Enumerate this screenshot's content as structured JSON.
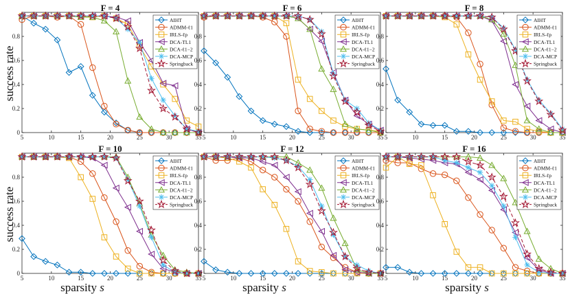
{
  "figure": {
    "ylabel": "success rate",
    "xlabel_text": "sparsity",
    "xlabel_var": "s"
  },
  "legend": [
    {
      "name": "AIHT",
      "color": "#0072BD",
      "marker": "diamond",
      "dash": ""
    },
    {
      "name": "ADMM-ℓ1",
      "color": "#D95319",
      "marker": "circle",
      "dash": ""
    },
    {
      "name": "IRLS-ℓp",
      "color": "#EDB120",
      "marker": "square",
      "dash": ""
    },
    {
      "name": "DCA-TL1",
      "color": "#7E2F8E",
      "marker": "triangle-left",
      "dash": ""
    },
    {
      "name": "DCA-ℓ1−2",
      "color": "#77AC30",
      "marker": "triangle-up",
      "dash": ""
    },
    {
      "name": "DCA-MCP",
      "color": "#4DBEEE",
      "marker": "asterisk",
      "dash": ""
    },
    {
      "name": "Springback",
      "color": "#A2142F",
      "marker": "pentagram",
      "dash": "5,3"
    }
  ],
  "chart_data": [
    {
      "type": "line",
      "title": "F = 4",
      "xlim": [
        5,
        35
      ],
      "ylim": [
        0,
        1
      ],
      "xticks": [
        5,
        10,
        15,
        20,
        25,
        30,
        35
      ],
      "yticks": [
        0,
        0.2,
        0.4,
        0.6,
        0.8
      ],
      "x": [
        5,
        7,
        9,
        11,
        13,
        15,
        17,
        19,
        21,
        23,
        25,
        27,
        29,
        31,
        33,
        35
      ],
      "series": [
        {
          "name": "AIHT",
          "values": [
            0.97,
            0.91,
            0.86,
            0.77,
            0.5,
            0.55,
            0.31,
            0.17,
            0.08,
            0.02,
            0.0,
            0.0,
            0.0,
            0.0,
            0.0,
            0.0
          ]
        },
        {
          "name": "ADMM-ℓ1",
          "values": [
            0.94,
            0.97,
            0.97,
            0.96,
            0.97,
            0.9,
            0.54,
            0.22,
            0.07,
            0.02,
            0.0,
            0.0,
            0.0,
            0.0,
            0.0,
            0.0
          ]
        },
        {
          "name": "IRLS-ℓp",
          "values": [
            0.97,
            0.97,
            0.97,
            0.97,
            0.97,
            0.97,
            0.96,
            0.97,
            0.95,
            0.9,
            0.72,
            0.55,
            0.4,
            0.28,
            0.1,
            0.05
          ]
        },
        {
          "name": "DCA-TL1",
          "values": [
            0.97,
            0.97,
            0.97,
            0.97,
            0.97,
            0.97,
            0.97,
            0.97,
            0.96,
            0.93,
            0.75,
            0.6,
            0.41,
            0.39,
            0.03,
            0.0
          ]
        },
        {
          "name": "DCA-ℓ1−2",
          "values": [
            0.97,
            0.97,
            0.97,
            0.97,
            0.97,
            0.96,
            0.96,
            0.93,
            0.84,
            0.43,
            0.13,
            0.03,
            0.0,
            0.0,
            0.0,
            0.0
          ]
        },
        {
          "name": "DCA-MCP",
          "values": [
            0.97,
            0.97,
            0.97,
            0.97,
            0.97,
            0.97,
            0.97,
            0.97,
            0.95,
            0.86,
            0.75,
            0.45,
            0.27,
            0.14,
            0.03,
            0.01
          ]
        },
        {
          "name": "Springback",
          "values": [
            0.97,
            0.97,
            0.97,
            0.97,
            0.97,
            0.97,
            0.97,
            0.97,
            0.95,
            0.88,
            0.7,
            0.35,
            0.2,
            0.13,
            0.03,
            0.0
          ]
        }
      ]
    },
    {
      "type": "line",
      "title": "F = 6",
      "xlim": [
        5,
        35
      ],
      "ylim": [
        0,
        1
      ],
      "xticks": [
        5,
        10,
        15,
        20,
        25,
        30,
        35
      ],
      "yticks": [
        0,
        0.2,
        0.4,
        0.6,
        0.8
      ],
      "x": [
        5,
        7,
        9,
        11,
        13,
        15,
        17,
        19,
        21,
        23,
        25,
        27,
        29,
        31,
        33,
        35
      ],
      "series": [
        {
          "name": "AIHT",
          "values": [
            0.68,
            0.58,
            0.46,
            0.3,
            0.18,
            0.1,
            0.07,
            0.05,
            0.01,
            0.0,
            0.0,
            0.0,
            0.0,
            0.0,
            0.0,
            0.0
          ]
        },
        {
          "name": "ADMM-ℓ1",
          "values": [
            0.96,
            0.97,
            0.97,
            0.97,
            0.97,
            0.96,
            0.92,
            0.8,
            0.18,
            0.03,
            0.01,
            0.0,
            0.0,
            0.0,
            0.0,
            0.0
          ]
        },
        {
          "name": "IRLS-ℓp",
          "values": [
            0.97,
            0.97,
            0.97,
            0.97,
            0.97,
            0.97,
            0.97,
            0.91,
            0.44,
            0.28,
            0.18,
            0.1,
            0.05,
            0.03,
            0.02,
            0.01
          ]
        },
        {
          "name": "DCA-TL1",
          "values": [
            0.97,
            0.97,
            0.97,
            0.97,
            0.97,
            0.97,
            0.97,
            0.97,
            0.95,
            0.86,
            0.76,
            0.5,
            0.27,
            0.14,
            0.07,
            0.02
          ]
        },
        {
          "name": "DCA-ℓ1−2",
          "values": [
            0.97,
            0.97,
            0.97,
            0.97,
            0.97,
            0.97,
            0.97,
            0.97,
            0.95,
            0.86,
            0.53,
            0.36,
            0.07,
            0.03,
            0.02,
            0.0
          ]
        },
        {
          "name": "DCA-MCP",
          "values": [
            0.97,
            0.97,
            0.97,
            0.97,
            0.97,
            0.97,
            0.97,
            0.97,
            0.97,
            0.94,
            0.84,
            0.49,
            0.27,
            0.2,
            0.08,
            0.02
          ]
        },
        {
          "name": "Springback",
          "values": [
            0.97,
            0.97,
            0.97,
            0.97,
            0.97,
            0.97,
            0.97,
            0.97,
            0.97,
            0.94,
            0.82,
            0.47,
            0.26,
            0.17,
            0.06,
            0.01
          ]
        }
      ]
    },
    {
      "type": "line",
      "title": "F = 8",
      "xlim": [
        5,
        35
      ],
      "ylim": [
        0,
        1
      ],
      "xticks": [
        5,
        10,
        15,
        20,
        25,
        30,
        35
      ],
      "yticks": [
        0,
        0.2,
        0.4,
        0.6,
        0.8
      ],
      "x": [
        5,
        7,
        9,
        11,
        13,
        15,
        17,
        19,
        21,
        23,
        25,
        27,
        29,
        31,
        33,
        35
      ],
      "series": [
        {
          "name": "AIHT",
          "values": [
            0.53,
            0.27,
            0.17,
            0.07,
            0.06,
            0.06,
            0.01,
            0.01,
            0.0,
            0.0,
            0.0,
            0.0,
            0.0,
            0.0,
            0.0,
            0.0
          ]
        },
        {
          "name": "ADMM-ℓ1",
          "values": [
            0.97,
            0.97,
            0.97,
            0.97,
            0.97,
            0.97,
            0.96,
            0.83,
            0.57,
            0.23,
            0.04,
            0.01,
            0.0,
            0.0,
            0.0,
            0.0
          ]
        },
        {
          "name": "IRLS-ℓp",
          "values": [
            0.97,
            0.97,
            0.97,
            0.97,
            0.97,
            0.96,
            0.9,
            0.65,
            0.44,
            0.26,
            0.1,
            0.09,
            0.03,
            0.01,
            0.0,
            0.0
          ]
        },
        {
          "name": "DCA-TL1",
          "values": [
            0.97,
            0.97,
            0.97,
            0.97,
            0.97,
            0.97,
            0.97,
            0.97,
            0.97,
            0.93,
            0.76,
            0.4,
            0.22,
            0.1,
            0.03,
            0.0
          ]
        },
        {
          "name": "DCA-ℓ1−2",
          "values": [
            0.97,
            0.97,
            0.97,
            0.97,
            0.97,
            0.97,
            0.97,
            0.97,
            0.97,
            0.94,
            0.82,
            0.56,
            0.1,
            0.03,
            0.0,
            0.0
          ]
        },
        {
          "name": "DCA-MCP",
          "values": [
            0.97,
            0.97,
            0.97,
            0.97,
            0.97,
            0.97,
            0.97,
            0.97,
            0.97,
            0.96,
            0.87,
            0.69,
            0.44,
            0.27,
            0.16,
            0.03
          ]
        },
        {
          "name": "Springback",
          "values": [
            0.97,
            0.97,
            0.97,
            0.97,
            0.97,
            0.97,
            0.97,
            0.97,
            0.97,
            0.96,
            0.86,
            0.68,
            0.43,
            0.26,
            0.15,
            0.02
          ]
        }
      ]
    },
    {
      "type": "line",
      "title": "F = 10",
      "xlim": [
        5,
        35
      ],
      "ylim": [
        0,
        1
      ],
      "xticks": [
        5,
        10,
        15,
        20,
        25,
        30,
        35
      ],
      "yticks": [
        0,
        0.2,
        0.4,
        0.6,
        0.8
      ],
      "x": [
        5,
        7,
        9,
        11,
        13,
        15,
        17,
        19,
        21,
        23,
        25,
        27,
        29,
        31,
        33,
        35
      ],
      "series": [
        {
          "name": "AIHT",
          "values": [
            0.29,
            0.14,
            0.1,
            0.07,
            0.01,
            0.01,
            0.0,
            0.0,
            0.0,
            0.0,
            0.0,
            0.0,
            0.0,
            0.0,
            0.0,
            0.0
          ]
        },
        {
          "name": "ADMM-ℓ1",
          "values": [
            0.97,
            0.97,
            0.97,
            0.97,
            0.97,
            0.93,
            0.83,
            0.63,
            0.43,
            0.19,
            0.06,
            0.01,
            0.0,
            0.0,
            0.0,
            0.0
          ]
        },
        {
          "name": "IRLS-ℓp",
          "values": [
            0.97,
            0.97,
            0.97,
            0.97,
            0.96,
            0.8,
            0.62,
            0.3,
            0.14,
            0.04,
            0.0,
            0.0,
            0.0,
            0.0,
            0.0,
            0.0
          ]
        },
        {
          "name": "DCA-TL1",
          "values": [
            0.97,
            0.97,
            0.97,
            0.97,
            0.97,
            0.97,
            0.96,
            0.9,
            0.71,
            0.55,
            0.35,
            0.16,
            0.04,
            0.01,
            0.0,
            0.0
          ]
        },
        {
          "name": "DCA-ℓ1−2",
          "values": [
            0.97,
            0.97,
            0.97,
            0.97,
            0.97,
            0.97,
            0.97,
            0.97,
            0.97,
            0.8,
            0.58,
            0.32,
            0.15,
            0.03,
            0.01,
            0.0
          ]
        },
        {
          "name": "DCA-MCP",
          "values": [
            0.97,
            0.97,
            0.97,
            0.97,
            0.97,
            0.97,
            0.97,
            0.97,
            0.96,
            0.78,
            0.56,
            0.3,
            0.07,
            0.01,
            0.0,
            0.0
          ]
        },
        {
          "name": "Springback",
          "values": [
            0.97,
            0.97,
            0.97,
            0.97,
            0.97,
            0.97,
            0.97,
            0.97,
            0.96,
            0.77,
            0.6,
            0.36,
            0.11,
            0.02,
            0.0,
            0.0
          ]
        }
      ]
    },
    {
      "type": "line",
      "title": "F = 12",
      "xlim": [
        5,
        35
      ],
      "ylim": [
        0,
        1
      ],
      "xticks": [
        5,
        10,
        15,
        20,
        25,
        30,
        35
      ],
      "yticks": [
        0,
        0.2,
        0.4,
        0.6,
        0.8
      ],
      "x": [
        5,
        7,
        9,
        11,
        13,
        15,
        17,
        19,
        21,
        23,
        25,
        27,
        29,
        31,
        33,
        35
      ],
      "series": [
        {
          "name": "AIHT",
          "values": [
            0.1,
            0.03,
            0.01,
            0.0,
            0.0,
            0.0,
            0.0,
            0.0,
            0.0,
            0.0,
            0.0,
            0.0,
            0.0,
            0.0,
            0.0,
            0.0
          ]
        },
        {
          "name": "ADMM-ℓ1",
          "values": [
            0.97,
            0.94,
            0.94,
            0.96,
            0.93,
            0.86,
            0.8,
            0.7,
            0.6,
            0.43,
            0.22,
            0.13,
            0.05,
            0.01,
            0.0,
            0.0
          ]
        },
        {
          "name": "IRLS-ℓp",
          "values": [
            0.97,
            0.97,
            0.96,
            0.93,
            0.88,
            0.7,
            0.57,
            0.37,
            0.1,
            0.02,
            0.01,
            0.0,
            0.0,
            0.0,
            0.0,
            0.0
          ]
        },
        {
          "name": "DCA-TL1",
          "values": [
            0.97,
            0.97,
            0.97,
            0.96,
            0.96,
            0.93,
            0.9,
            0.8,
            0.68,
            0.5,
            0.35,
            0.15,
            0.03,
            0.01,
            0.0,
            0.0
          ]
        },
        {
          "name": "DCA-ℓ1−2",
          "values": [
            0.97,
            0.97,
            0.97,
            0.97,
            0.97,
            0.97,
            0.97,
            0.97,
            0.92,
            0.86,
            0.71,
            0.46,
            0.25,
            0.03,
            0.0,
            0.0
          ]
        },
        {
          "name": "DCA-MCP",
          "values": [
            0.97,
            0.97,
            0.97,
            0.97,
            0.97,
            0.97,
            0.96,
            0.94,
            0.89,
            0.78,
            0.56,
            0.32,
            0.14,
            0.07,
            0.02,
            0.0
          ]
        },
        {
          "name": "Springback",
          "values": [
            0.97,
            0.97,
            0.97,
            0.97,
            0.97,
            0.97,
            0.97,
            0.94,
            0.88,
            0.74,
            0.52,
            0.34,
            0.14,
            0.04,
            0.01,
            0.0
          ]
        }
      ]
    },
    {
      "type": "line",
      "title": "F = 16",
      "xlim": [
        5,
        35
      ],
      "ylim": [
        0,
        1
      ],
      "xticks": [
        5,
        10,
        15,
        20,
        25,
        30,
        35
      ],
      "yticks": [
        0,
        0.2,
        0.4,
        0.6,
        0.8
      ],
      "x": [
        5,
        7,
        9,
        11,
        13,
        15,
        17,
        19,
        21,
        23,
        25,
        27,
        29,
        31,
        33,
        35
      ],
      "series": [
        {
          "name": "AIHT",
          "values": [
            0.05,
            0.05,
            0.01,
            0.0,
            0.0,
            0.0,
            0.0,
            0.0,
            0.0,
            0.0,
            0.0,
            0.0,
            0.0,
            0.0,
            0.0,
            0.0
          ]
        },
        {
          "name": "ADMM-ℓ1",
          "values": [
            0.94,
            0.92,
            0.92,
            0.87,
            0.83,
            0.82,
            0.77,
            0.63,
            0.49,
            0.36,
            0.21,
            0.05,
            0.02,
            0.0,
            0.0,
            0.0
          ]
        },
        {
          "name": "IRLS-ℓp",
          "values": [
            0.88,
            0.97,
            0.91,
            0.9,
            0.65,
            0.41,
            0.18,
            0.05,
            0.05,
            0.0,
            0.0,
            0.0,
            0.0,
            0.0,
            0.0,
            0.0
          ]
        },
        {
          "name": "DCA-TL1",
          "values": [
            0.97,
            0.97,
            0.96,
            0.95,
            0.94,
            0.92,
            0.91,
            0.84,
            0.78,
            0.69,
            0.53,
            0.34,
            0.13,
            0.03,
            0.0,
            0.0
          ]
        },
        {
          "name": "DCA-ℓ1−2",
          "values": [
            0.97,
            0.97,
            0.97,
            0.97,
            0.97,
            0.97,
            0.97,
            0.97,
            0.96,
            0.9,
            0.79,
            0.59,
            0.35,
            0.12,
            0.04,
            0.0
          ]
        },
        {
          "name": "DCA-MCP",
          "values": [
            0.97,
            0.97,
            0.97,
            0.97,
            0.97,
            0.94,
            0.92,
            0.88,
            0.84,
            0.73,
            0.56,
            0.3,
            0.07,
            0.01,
            0.0,
            0.0
          ]
        },
        {
          "name": "Springback",
          "values": [
            0.97,
            0.97,
            0.97,
            0.97,
            0.97,
            0.97,
            0.97,
            0.93,
            0.9,
            0.8,
            0.64,
            0.42,
            0.16,
            0.04,
            0.01,
            0.0
          ]
        }
      ]
    }
  ]
}
